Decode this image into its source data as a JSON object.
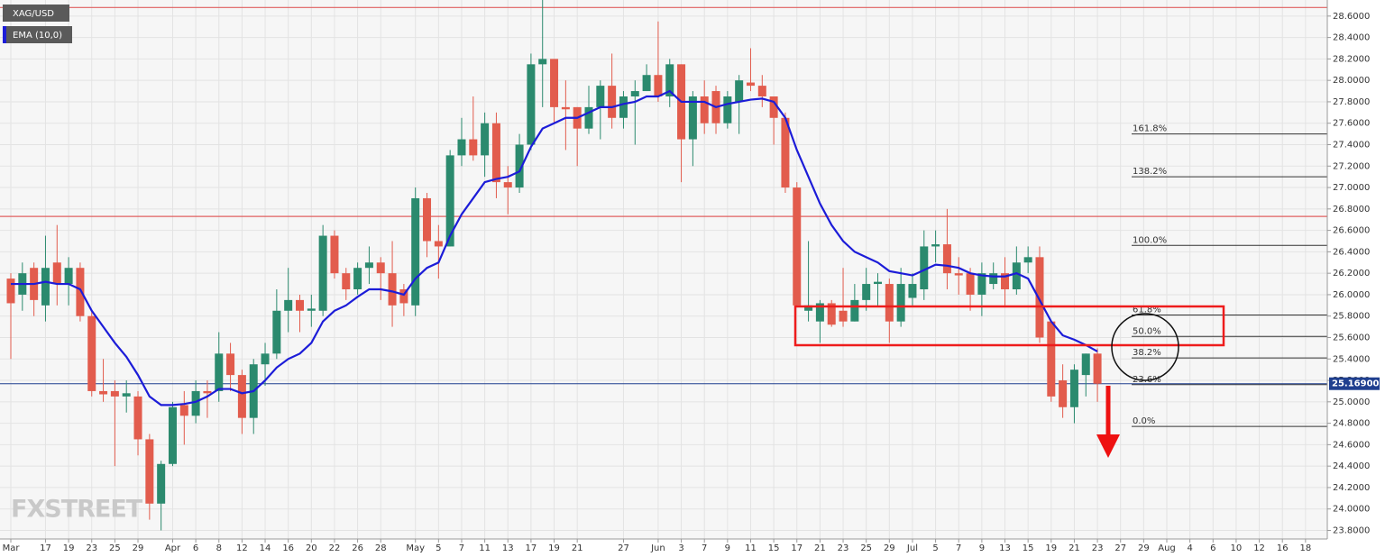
{
  "chart_data": {
    "type": "candlestick",
    "categories": [
      "Mar",
      null,
      null,
      "17",
      null,
      "19",
      null,
      "23",
      null,
      "25",
      null,
      "29",
      null,
      null,
      "Apr",
      null,
      "6",
      null,
      "8",
      null,
      "12",
      null,
      "14",
      null,
      "16",
      null,
      "20",
      null,
      "22",
      null,
      "26",
      null,
      "28",
      null,
      null,
      "May",
      null,
      "5",
      null,
      "7",
      null,
      "11",
      null,
      "13",
      null,
      "17",
      null,
      "19",
      null,
      "21",
      null,
      null,
      null,
      "27",
      null,
      null,
      "Jun",
      null,
      "3",
      null,
      "7",
      null,
      "9",
      null,
      "11",
      null,
      "15",
      null,
      "17",
      null,
      "21",
      null,
      "23",
      null,
      "25",
      null,
      "29",
      null,
      "Jul",
      null,
      "5",
      null,
      "7",
      null,
      "9",
      null,
      "13",
      null,
      "15",
      null,
      "19",
      null,
      "21",
      null,
      "23",
      null,
      "27",
      null,
      "29",
      null,
      "Aug",
      null,
      "4",
      null,
      "6",
      null,
      "10",
      null,
      "12",
      null,
      "16",
      null,
      "18"
    ],
    "series": [
      {
        "name": "XAG/USD",
        "type": "candlestick",
        "up_color": "#2b8a6e",
        "down_color": "#e25c4d",
        "open": [
          26.15,
          26.0,
          26.25,
          25.9,
          26.3,
          26.1,
          26.25,
          25.8,
          25.1,
          25.1,
          25.05,
          25.05,
          24.65,
          24.05,
          24.42,
          24.97,
          24.87,
          25.1,
          25.1,
          25.45,
          25.25,
          24.85,
          25.35,
          25.45,
          25.85,
          25.95,
          25.85,
          25.85,
          26.55,
          26.2,
          26.05,
          26.25,
          26.3,
          26.2,
          26.05,
          25.9,
          26.9,
          26.5,
          26.45,
          27.3,
          27.45,
          27.3,
          27.6,
          27.05,
          27.0,
          27.4,
          28.15,
          28.2,
          27.75,
          27.75,
          27.55,
          27.75,
          27.95,
          27.65,
          27.85,
          27.9,
          28.05,
          27.85,
          28.15,
          27.45,
          27.85,
          27.9,
          27.6,
          27.8,
          27.98,
          27.95,
          27.85,
          27.65,
          27.0,
          25.85,
          25.75,
          25.92,
          25.85,
          25.75,
          25.95,
          26.1,
          26.1,
          25.75,
          25.97,
          26.05,
          26.45,
          26.47,
          26.2,
          26.2,
          26.0,
          26.1,
          26.2,
          26.05,
          26.3,
          26.35,
          25.75,
          25.2,
          24.95,
          25.25,
          25.45,
          null,
          null,
          null,
          null,
          null,
          null,
          null,
          null,
          null,
          null,
          null,
          null,
          null,
          null,
          null,
          null,
          null,
          null
        ],
        "high": [
          26.2,
          26.3,
          26.3,
          26.55,
          26.65,
          26.35,
          26.3,
          25.85,
          25.4,
          25.2,
          25.2,
          25.1,
          24.7,
          24.45,
          25.0,
          25.1,
          25.2,
          25.2,
          25.65,
          25.55,
          25.3,
          25.4,
          25.55,
          26.05,
          26.25,
          26.0,
          26.0,
          26.65,
          26.6,
          26.25,
          26.3,
          26.45,
          26.35,
          26.5,
          26.1,
          27.0,
          26.95,
          26.65,
          27.35,
          27.65,
          27.85,
          27.7,
          27.7,
          27.2,
          27.5,
          28.25,
          28.75,
          28.2,
          28.0,
          27.75,
          27.95,
          28.0,
          28.25,
          27.9,
          28.0,
          28.15,
          28.55,
          28.2,
          28.15,
          27.9,
          28.0,
          27.95,
          27.9,
          28.05,
          28.3,
          28.05,
          27.85,
          27.7,
          27.05,
          26.5,
          25.95,
          25.95,
          26.25,
          26.1,
          26.25,
          26.2,
          26.15,
          26.25,
          26.2,
          26.6,
          26.6,
          26.8,
          26.35,
          26.25,
          26.3,
          26.3,
          26.35,
          26.45,
          26.45,
          26.45,
          25.75,
          25.35,
          25.35,
          25.45,
          25.5,
          null,
          null,
          null,
          null,
          null,
          null,
          null,
          null,
          null,
          null,
          null,
          null,
          null,
          null,
          null,
          null,
          null,
          null
        ],
        "low": [
          25.4,
          25.85,
          25.8,
          25.75,
          25.9,
          25.9,
          25.75,
          25.05,
          25.0,
          24.4,
          24.9,
          24.5,
          23.9,
          23.8,
          24.4,
          24.6,
          24.8,
          24.85,
          25.0,
          25.1,
          24.7,
          24.7,
          25.15,
          25.4,
          25.65,
          25.65,
          25.7,
          25.8,
          26.15,
          25.95,
          26.0,
          26.1,
          25.95,
          25.7,
          25.8,
          25.8,
          26.35,
          26.15,
          26.45,
          27.2,
          27.25,
          27.1,
          26.9,
          26.75,
          26.95,
          27.35,
          27.75,
          27.6,
          27.35,
          27.2,
          27.5,
          27.45,
          27.55,
          27.55,
          27.4,
          27.9,
          27.8,
          27.75,
          27.05,
          27.2,
          27.5,
          27.5,
          27.55,
          27.5,
          27.9,
          27.75,
          27.4,
          26.95,
          25.9,
          25.75,
          25.55,
          25.7,
          25.7,
          25.75,
          25.85,
          25.9,
          25.55,
          25.7,
          25.9,
          25.95,
          26.3,
          26.05,
          26.0,
          25.85,
          25.8,
          26.05,
          25.9,
          26.0,
          26.2,
          25.55,
          25.0,
          24.85,
          24.8,
          25.05,
          25.0,
          null,
          null,
          null,
          null,
          null,
          null,
          null,
          null,
          null,
          null,
          null,
          null,
          null,
          null,
          null,
          null,
          null,
          null
        ],
        "close": [
          25.92,
          26.2,
          25.95,
          26.25,
          26.1,
          26.25,
          25.8,
          25.1,
          25.07,
          25.05,
          25.08,
          24.65,
          24.05,
          24.42,
          24.95,
          24.87,
          25.1,
          25.08,
          25.45,
          25.25,
          24.85,
          25.35,
          25.45,
          25.85,
          25.95,
          25.85,
          25.87,
          26.55,
          26.2,
          26.05,
          26.25,
          26.3,
          26.2,
          25.9,
          25.92,
          26.9,
          26.5,
          26.45,
          27.3,
          27.45,
          27.3,
          27.6,
          27.05,
          27.0,
          27.4,
          28.15,
          28.2,
          27.75,
          27.73,
          27.55,
          27.75,
          27.95,
          27.65,
          27.85,
          27.9,
          28.05,
          27.85,
          28.15,
          27.45,
          27.85,
          27.6,
          27.6,
          27.85,
          28.0,
          27.95,
          27.85,
          27.65,
          27.0,
          25.9,
          25.9,
          25.92,
          25.72,
          25.75,
          25.95,
          26.1,
          26.12,
          25.75,
          26.1,
          26.1,
          26.45,
          26.47,
          26.2,
          26.18,
          26.0,
          26.2,
          26.2,
          26.05,
          26.3,
          26.35,
          25.6,
          25.05,
          24.95,
          25.3,
          25.45,
          25.169,
          null,
          null,
          null,
          null,
          null,
          null,
          null,
          null,
          null,
          null,
          null,
          null,
          null,
          null,
          null,
          null,
          null,
          null
        ]
      },
      {
        "name": "EMA (10,0)",
        "type": "line",
        "color": "#1c1cd8",
        "values": [
          26.1,
          26.1,
          26.1,
          26.12,
          26.1,
          26.1,
          26.05,
          25.85,
          25.7,
          25.55,
          25.42,
          25.25,
          25.05,
          24.97,
          24.97,
          24.98,
          25.0,
          25.05,
          25.12,
          25.12,
          25.08,
          25.1,
          25.2,
          25.32,
          25.4,
          25.45,
          25.55,
          25.75,
          25.85,
          25.9,
          25.98,
          26.05,
          26.05,
          26.03,
          26.0,
          26.15,
          26.25,
          26.3,
          26.55,
          26.75,
          26.9,
          27.05,
          27.08,
          27.1,
          27.15,
          27.38,
          27.55,
          27.6,
          27.65,
          27.65,
          27.7,
          27.75,
          27.75,
          27.78,
          27.8,
          27.85,
          27.85,
          27.9,
          27.8,
          27.8,
          27.8,
          27.75,
          27.78,
          27.8,
          27.82,
          27.83,
          27.8,
          27.65,
          27.35,
          27.1,
          26.85,
          26.65,
          26.5,
          26.4,
          26.35,
          26.3,
          26.22,
          26.2,
          26.18,
          26.23,
          26.28,
          26.27,
          26.25,
          26.2,
          26.18,
          26.17,
          26.17,
          26.2,
          26.15,
          25.95,
          25.75,
          25.62,
          25.58,
          25.53,
          25.47,
          null,
          null,
          null,
          null,
          null,
          null,
          null,
          null,
          null,
          null,
          null,
          null,
          null,
          null,
          null,
          null,
          null,
          null
        ]
      }
    ],
    "ylim": [
      23.72,
      28.75
    ],
    "yticks": [
      {
        "value": 23.8,
        "label": "23.8000"
      },
      {
        "value": 24.0,
        "label": "24.0000"
      },
      {
        "value": 24.2,
        "label": "24.2000"
      },
      {
        "value": 24.4,
        "label": "24.4000"
      },
      {
        "value": 24.6,
        "label": "24.6000"
      },
      {
        "value": 24.8,
        "label": "24.8000"
      },
      {
        "value": 25.0,
        "label": "25.0000"
      },
      {
        "value": 25.2,
        "label": "25.2000"
      },
      {
        "value": 25.4,
        "label": "25.4000"
      },
      {
        "value": 25.6,
        "label": "25.6000"
      },
      {
        "value": 25.8,
        "label": "25.8000"
      },
      {
        "value": 26.0,
        "label": "26.0000"
      },
      {
        "value": 26.2,
        "label": "26.2000"
      },
      {
        "value": 26.4,
        "label": "26.4000"
      },
      {
        "value": 26.6,
        "label": "26.6000"
      },
      {
        "value": 26.8,
        "label": "26.8000"
      },
      {
        "value": 27.0,
        "label": "27.0000"
      },
      {
        "value": 27.2,
        "label": "27.2000"
      },
      {
        "value": 27.4,
        "label": "27.4000"
      },
      {
        "value": 27.6,
        "label": "27.6000"
      },
      {
        "value": 27.8,
        "label": "27.8000"
      },
      {
        "value": 28.0,
        "label": "28.0000"
      },
      {
        "value": 28.2,
        "label": "28.2000"
      },
      {
        "value": 28.4,
        "label": "28.4000"
      },
      {
        "value": 28.6,
        "label": "28.6000"
      }
    ],
    "grid": true,
    "horizontal_lines": [
      {
        "value": 28.68,
        "color": "#e06060"
      },
      {
        "value": 26.73,
        "color": "#e06060"
      }
    ],
    "last_price": {
      "value": 25.169,
      "label": "25.16900",
      "color": "#1f3f8f"
    },
    "fib_levels": [
      {
        "value": 27.5,
        "label": "161.8%"
      },
      {
        "value": 27.1,
        "label": "138.2%"
      },
      {
        "value": 26.46,
        "label": "100.0%"
      },
      {
        "value": 25.81,
        "label": "61.8%"
      },
      {
        "value": 25.61,
        "label": "50.0%"
      },
      {
        "value": 25.41,
        "label": "38.2%"
      },
      {
        "value": 25.16,
        "label": "23.6%"
      },
      {
        "value": 24.77,
        "label": "0.0%"
      }
    ],
    "watermark": "FXSTREET"
  }
}
